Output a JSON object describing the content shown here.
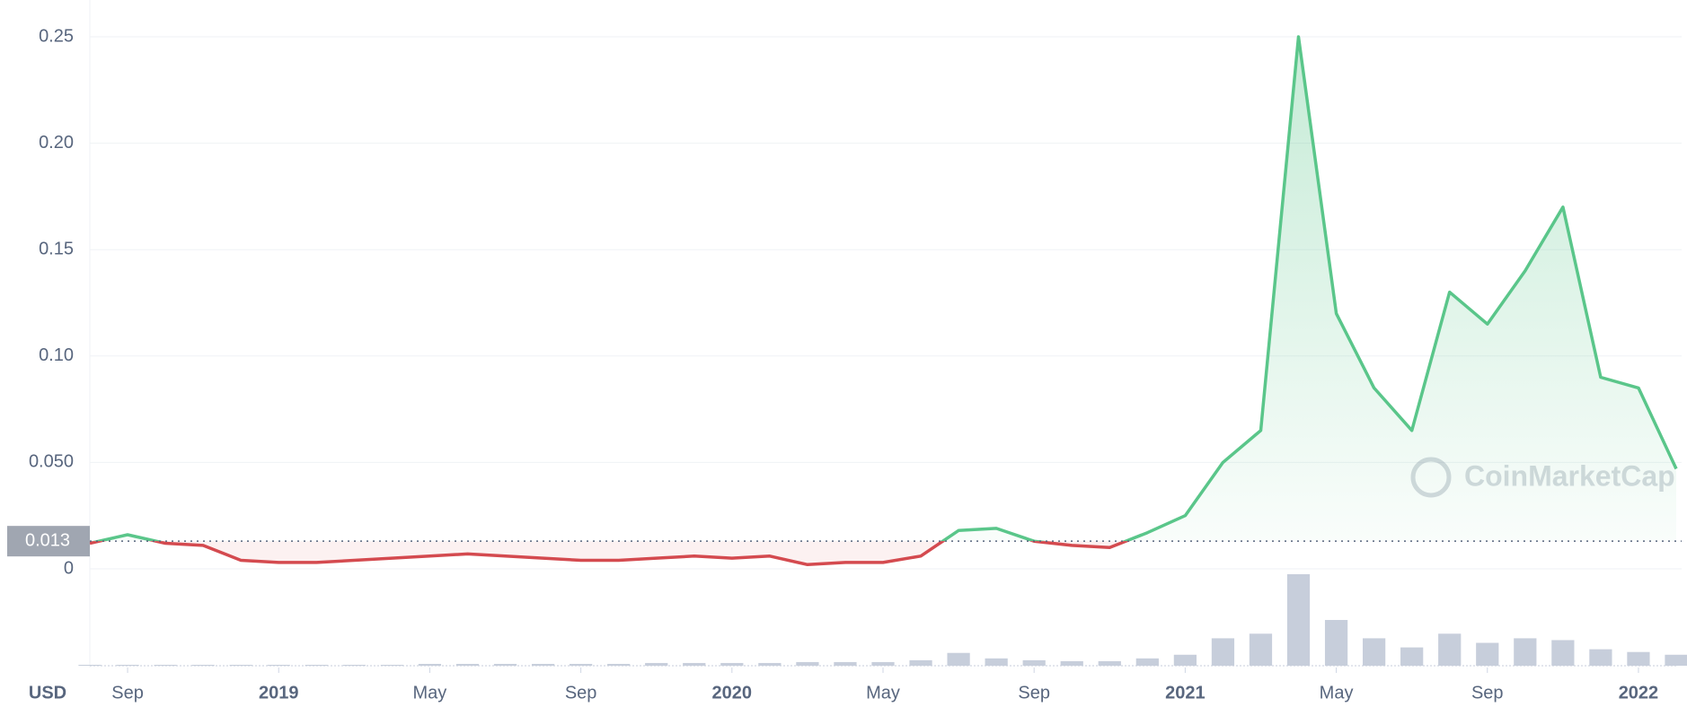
{
  "chart_data": {
    "type": "line",
    "currency": "USD",
    "watermark": "CoinMarketCap",
    "x": [
      "2018-08",
      "2018-09",
      "2018-10",
      "2018-11",
      "2018-12",
      "2019-01",
      "2019-02",
      "2019-03",
      "2019-04",
      "2019-05",
      "2019-06",
      "2019-07",
      "2019-08",
      "2019-09",
      "2019-10",
      "2019-11",
      "2019-12",
      "2020-01",
      "2020-02",
      "2020-03",
      "2020-04",
      "2020-05",
      "2020-06",
      "2020-07",
      "2020-08",
      "2020-09",
      "2020-10",
      "2020-11",
      "2020-12",
      "2021-01",
      "2021-02",
      "2021-03",
      "2021-04",
      "2021-05",
      "2021-06",
      "2021-07",
      "2021-08",
      "2021-09",
      "2021-10",
      "2021-11",
      "2021-12",
      "2022-01",
      "2022-02"
    ],
    "values": [
      0.012,
      0.016,
      0.012,
      0.011,
      0.004,
      0.003,
      0.003,
      0.004,
      0.005,
      0.006,
      0.007,
      0.006,
      0.005,
      0.004,
      0.004,
      0.005,
      0.006,
      0.005,
      0.006,
      0.002,
      0.003,
      0.003,
      0.006,
      0.018,
      0.019,
      0.013,
      0.011,
      0.01,
      0.017,
      0.025,
      0.05,
      0.065,
      0.25,
      0.12,
      0.085,
      0.065,
      0.13,
      0.115,
      0.14,
      0.17,
      0.09,
      0.085,
      0.047
    ],
    "volume": [
      1,
      1,
      1,
      1,
      1,
      1,
      1,
      1,
      1,
      2,
      2,
      2,
      2,
      2,
      2,
      3,
      3,
      3,
      3,
      4,
      4,
      4,
      6,
      14,
      8,
      6,
      5,
      5,
      8,
      12,
      30,
      35,
      100,
      50,
      30,
      20,
      35,
      25,
      30,
      28,
      18,
      15,
      12
    ],
    "baseline": 0.013,
    "up_color": "#5ac68a",
    "down_color": "#d44a4f",
    "volume_color": "#c7cedb",
    "ylim": [
      0,
      0.25
    ],
    "yticks": [
      0,
      {
        "value": 0.05,
        "label": "0.050"
      },
      {
        "value": 0.1,
        "label": "0.10"
      },
      0.15,
      {
        "value": 0.2,
        "label": "0.20"
      },
      0.25
    ],
    "xticks": [
      {
        "value": "2018-09",
        "label": "Sep"
      },
      {
        "value": "2019-01",
        "label": "2019"
      },
      {
        "value": "2019-05",
        "label": "May"
      },
      {
        "value": "2019-09",
        "label": "Sep"
      },
      {
        "value": "2020-01",
        "label": "2020"
      },
      {
        "value": "2020-05",
        "label": "May"
      },
      {
        "value": "2020-09",
        "label": "Sep"
      },
      {
        "value": "2021-01",
        "label": "2021"
      },
      {
        "value": "2021-05",
        "label": "May"
      },
      {
        "value": "2021-09",
        "label": "Sep"
      },
      {
        "value": "2022-01",
        "label": "2022"
      }
    ],
    "grid": true
  }
}
